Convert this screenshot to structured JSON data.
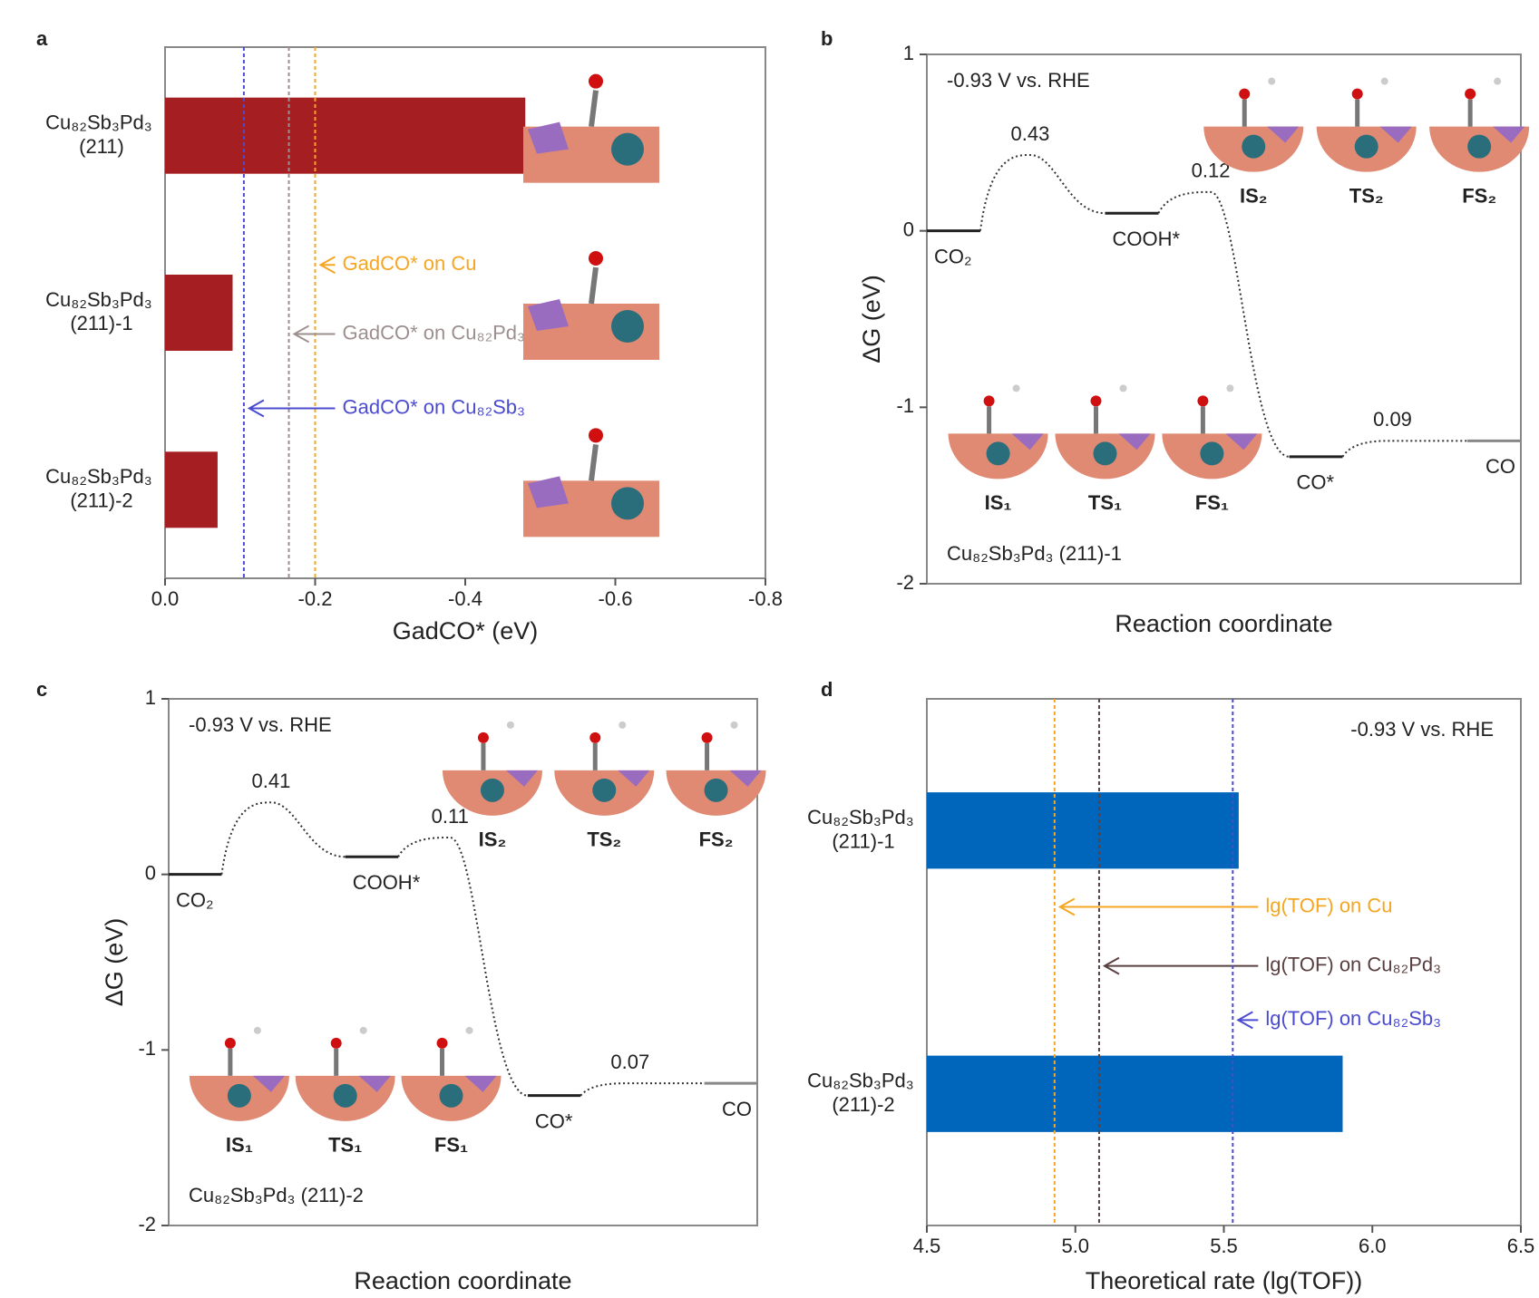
{
  "chart_data": [
    {
      "type": "hbar",
      "panel": "a",
      "xlabel": "GadCO* (eV)",
      "categories": [
        "Cu₈₂Sb₃Pd₃ (211)",
        "Cu₈₂Sb₃Pd₃ (211)-1",
        "Cu₈₂Sb₃Pd₃ (211)-2"
      ],
      "values": [
        -0.48,
        -0.09,
        -0.07
      ],
      "color": "#a51e22",
      "xlim": [
        0,
        -0.8
      ],
      "xticks": [
        {
          "value": 0,
          "label": "0.0"
        },
        -0.2,
        -0.4,
        -0.6,
        -0.8
      ],
      "reference_lines": [
        {
          "name": "GadCO* on Cu",
          "value": -0.2,
          "color": "#f5a623"
        },
        {
          "name": "GadCO* on Cu₈₂Pd₃",
          "value": -0.165,
          "color": "#9e8f8f"
        },
        {
          "name": "GadCO* on Cu₈₂Sb₃",
          "value": -0.105,
          "color": "#4b4bd0"
        }
      ]
    },
    {
      "type": "energy",
      "panel": "b",
      "ylabel": "ΔG (eV)",
      "xlabel": "Reaction coordinate",
      "condition": "-0.93 V vs. RHE",
      "surface": "Cu₈₂Sb₃Pd₃ (211)-1",
      "levels": [
        {
          "label": "CO₂",
          "value": 0
        },
        {
          "label": "COOH*",
          "value": 0.1
        },
        {
          "label": "CO*",
          "value": -1.28
        },
        {
          "label": "CO",
          "value": -1.19
        }
      ],
      "barriers": [
        0.43,
        0.12,
        0.09
      ],
      "structures": [
        "IS₁",
        "TS₁",
        "FS₁",
        "IS₂",
        "TS₂",
        "FS₂"
      ],
      "ylim": [
        -2,
        1
      ],
      "yticks": [
        -2,
        -1,
        0,
        1
      ]
    },
    {
      "type": "energy",
      "panel": "c",
      "ylabel": "ΔG (eV)",
      "xlabel": "Reaction coordinate",
      "condition": "-0.93 V vs. RHE",
      "surface": "Cu₈₂Sb₃Pd₃ (211)-2",
      "levels": [
        {
          "label": "CO₂",
          "value": 0
        },
        {
          "label": "COOH*",
          "value": 0.1
        },
        {
          "label": "CO*",
          "value": -1.26
        },
        {
          "label": "CO",
          "value": -1.19
        }
      ],
      "barriers": [
        0.41,
        0.11,
        0.07
      ],
      "structures": [
        "IS₁",
        "TS₁",
        "FS₁",
        "IS₂",
        "TS₂",
        "FS₂"
      ],
      "ylim": [
        -2,
        1
      ],
      "yticks": [
        -2,
        -1,
        0,
        1
      ]
    },
    {
      "type": "hbar",
      "panel": "d",
      "xlabel": "Theoretical rate (lg(TOF))",
      "condition": "-0.93 V vs. RHE",
      "categories": [
        "Cu₈₂Sb₃Pd₃ (211)-1",
        "Cu₈₂Sb₃Pd₃ (211)-2"
      ],
      "values": [
        5.55,
        5.9
      ],
      "color": "#0066bb",
      "xlim": [
        4.5,
        6.5
      ],
      "xticks": [
        4.5,
        {
          "value": 5,
          "label": "5.0"
        },
        5.5,
        {
          "value": 6,
          "label": "6.0"
        },
        6.5
      ],
      "reference_lines": [
        {
          "name": "lg(TOF) on Cu",
          "value": 4.93,
          "color": "#f5a623"
        },
        {
          "name": "lg(TOF) on Cu₈₂Pd₃",
          "value": 5.08,
          "color": "#5a4040"
        },
        {
          "name": "lg(TOF) on Cu₈₂Sb₃",
          "value": 5.53,
          "color": "#4b4bd0"
        }
      ]
    }
  ]
}
